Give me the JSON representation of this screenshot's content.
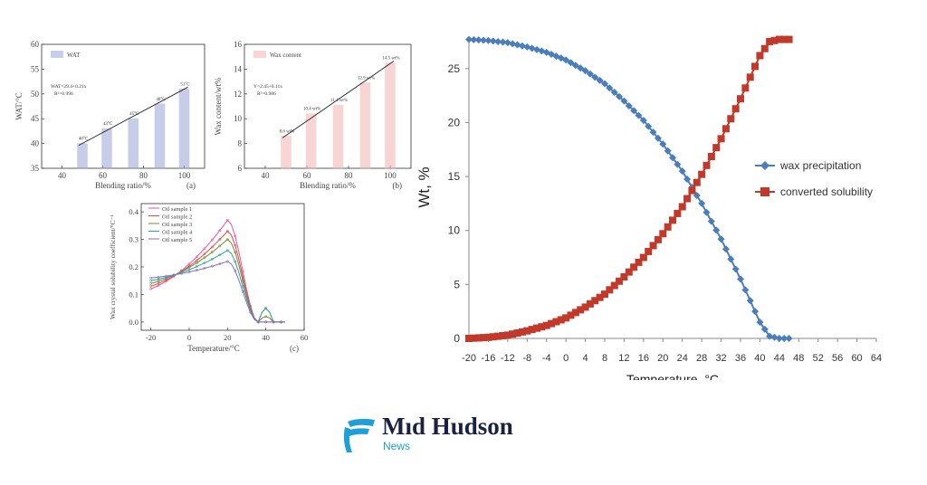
{
  "logo": {
    "title": "Mıd Hudson",
    "subtitle": "News",
    "accent_color": "#1e9fd8"
  },
  "chart_data": [
    {
      "type": "bar",
      "panel_label": "(a)",
      "xlabel": "Blending ratio/%",
      "ylabel": "WAT/°C",
      "categories": [
        "50",
        "60",
        "75",
        "88",
        "100"
      ],
      "x_ticks": [
        "40",
        "60",
        "80",
        "100"
      ],
      "y_ticks": [
        "35",
        "40",
        "45",
        "50",
        "55",
        "60"
      ],
      "ylim": [
        35,
        60
      ],
      "values": [
        40,
        43,
        45,
        48,
        51
      ],
      "data_labels": [
        "40°C",
        "43°C",
        "45°C",
        "48°C",
        "51°C"
      ],
      "legend": [
        "WAT"
      ],
      "annotation": [
        "WAT=29.4+0.21x",
        "R²=0.996"
      ],
      "color": "#9aa6d8"
    },
    {
      "type": "bar",
      "panel_label": "(b)",
      "xlabel": "Blending ratio/%",
      "ylabel": "Wax content/wt%",
      "categories": [
        "50",
        "62",
        "75",
        "88",
        "100"
      ],
      "x_ticks": [
        "40",
        "60",
        "80",
        "100"
      ],
      "y_ticks": [
        "6",
        "8",
        "10",
        "12",
        "14",
        "16"
      ],
      "ylim": [
        6,
        16
      ],
      "values": [
        8.6,
        10.4,
        11.1,
        12.9,
        14.5
      ],
      "data_labels": [
        "8.6 wt%",
        "10.4 wt%",
        "11.1 wt%",
        "12.9 wt%",
        "14.5 wt%"
      ],
      "legend": [
        "Wax content"
      ],
      "annotation": [
        "Y=2.45+0.11x",
        "R²=0.986"
      ],
      "color": "#f2b3b3"
    },
    {
      "type": "line",
      "panel_label": "(c)",
      "xlabel": "Temperature/°C",
      "ylabel": "Wax crystal solubility coefficient/°C⁻¹",
      "x_ticks": [
        "-20",
        "0",
        "20",
        "40",
        "60"
      ],
      "y_ticks": [
        "0.0",
        "0.1",
        "0.2",
        "0.3",
        "0.4"
      ],
      "xlim": [
        -25,
        60
      ],
      "ylim": [
        -0.03,
        0.43
      ],
      "series": [
        {
          "name": "Oil sample 1",
          "color": "#e05aa8",
          "peak": 0.37,
          "end": 0.0
        },
        {
          "name": "Oil sample 2",
          "color": "#e44b4b",
          "peak": 0.33,
          "end": 0.05
        },
        {
          "name": "Oil sample 3",
          "color": "#7a8a2a",
          "peak": 0.3,
          "end": 0.02
        },
        {
          "name": "Oil sample 4",
          "color": "#2aa6a0",
          "peak": 0.26,
          "end": 0.05
        },
        {
          "name": "Oil sample 5",
          "color": "#8a6ad0",
          "peak": 0.22,
          "end": 0.0
        }
      ],
      "x": [
        -20,
        -15,
        -10,
        -5,
        0,
        5,
        10,
        15,
        20,
        25,
        30,
        35,
        40,
        45,
        50
      ]
    },
    {
      "type": "line",
      "ylabel": "Wt, %",
      "xlabel": "Temperature, °C",
      "x_ticks": [
        "-20",
        "-16",
        "-12",
        "-8",
        "-4",
        "0",
        "4",
        "8",
        "12",
        "16",
        "20",
        "24",
        "28",
        "32",
        "36",
        "40",
        "44",
        "48",
        "52",
        "56",
        "60",
        "64"
      ],
      "y_ticks": [
        "0",
        "5",
        "10",
        "15",
        "20",
        "25"
      ],
      "xlim": [
        -20,
        64
      ],
      "ylim": [
        0,
        28
      ],
      "legend_position": "right",
      "series": [
        {
          "name": "wax precipitation",
          "color": "#4a7ebb",
          "marker": "diamond",
          "x": [
            -20,
            -16,
            -12,
            -8,
            -4,
            0,
            4,
            8,
            12,
            16,
            20,
            24,
            28,
            32,
            36,
            40,
            42,
            44,
            46
          ],
          "y": [
            27.7,
            27.6,
            27.4,
            27.0,
            26.5,
            25.8,
            24.8,
            23.6,
            22.0,
            20.2,
            18.0,
            15.5,
            12.5,
            9.2,
            5.5,
            1.5,
            0.2,
            0,
            0
          ]
        },
        {
          "name": "converted solubility",
          "color": "#c0392b",
          "marker": "square",
          "x": [
            -20,
            -16,
            -12,
            -8,
            -4,
            0,
            4,
            8,
            12,
            16,
            20,
            24,
            28,
            32,
            36,
            40,
            42,
            44,
            46
          ],
          "y": [
            0,
            0.1,
            0.3,
            0.7,
            1.2,
            1.9,
            2.9,
            4.1,
            5.7,
            7.5,
            9.7,
            12.2,
            15.2,
            18.5,
            22.2,
            26.2,
            27.5,
            27.7,
            27.7
          ]
        }
      ]
    }
  ]
}
